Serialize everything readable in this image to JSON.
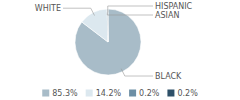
{
  "chart_data": {
    "type": "pie",
    "categories": [
      "BLACK",
      "WHITE",
      "ASIAN",
      "HISPANIC"
    ],
    "values": [
      85.3,
      14.2,
      0.2,
      0.2
    ],
    "value_labels": [
      "85.3%",
      "14.2%",
      "0.2%",
      "0.2%"
    ],
    "colors": [
      "#a8bcc8",
      "#dce8ef",
      "#6d8fa5",
      "#2e5068"
    ],
    "legend": "bottom"
  }
}
